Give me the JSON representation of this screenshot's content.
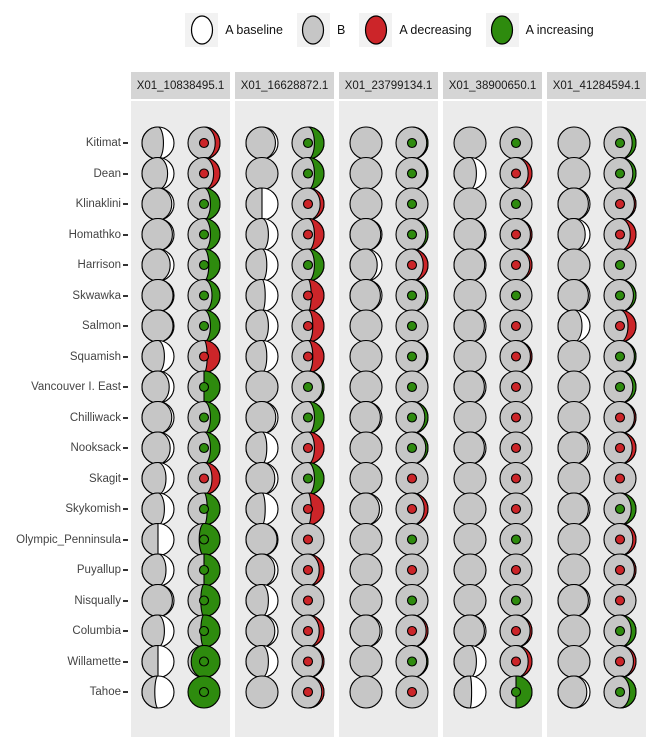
{
  "colors": {
    "baseline_white": "#FFFFFF",
    "b_gray": "#C6C6C6",
    "decreasing_red": "#CC2529",
    "increasing_green": "#2E8B0E",
    "panel_bg": "#EBEBEB",
    "strip_bg": "#D5D5D5",
    "outline": "#000000",
    "row_label": "#444444",
    "tick": "#333333"
  },
  "legend": {
    "items": [
      {
        "label": "A baseline",
        "fill": "#FFFFFF"
      },
      {
        "label": "B",
        "fill": "#C6C6C6"
      },
      {
        "label": "A decreasing",
        "fill": "#CC2529"
      },
      {
        "label": "A increasing",
        "fill": "#2E8B0E"
      }
    ]
  },
  "chart_data": {
    "type": "moon-chart",
    "description": "Faceted moon/phase chart. Each row (site) x facet (marker) shows two circles: left moon = gray fraction B vs white A-baseline; right moon = gray circle with colored crescent whose size is the magnitude of change in A (red = decreasing, green = increasing) and a center dot colored by direction.",
    "legend_position": "top",
    "facets": [
      "X01_10838495.1",
      "X01_16628872.1",
      "X01_23799134.1",
      "X01_38900650.1",
      "X01_41284594.1"
    ],
    "rows": [
      "Kitimat",
      "Dean",
      "Klinaklini",
      "Homathko",
      "Harrison",
      "Skwawka",
      "Salmon",
      "Squamish",
      "Vancouver I. East",
      "Chilliwack",
      "Nooksack",
      "Skagit",
      "Skykomish",
      "Olympic_Penninsula",
      "Puyallup",
      "Nisqually",
      "Columbia",
      "Willamette",
      "Tahoe"
    ],
    "cell_fields": [
      "b = gray fraction of left moon (0-1)",
      "dir = inc|dec",
      "mag = colored fraction of right moon (0-1)"
    ],
    "cells": [
      [
        {
          "b": 0.67,
          "dir": "dec",
          "mag": 0.15
        },
        {
          "b": 0.92,
          "dir": "inc",
          "mag": 0.3
        },
        {
          "b": 1,
          "dir": "inc",
          "mag": 0.04
        },
        {
          "b": 1,
          "dir": "inc",
          "mag": 0
        },
        {
          "b": 1,
          "dir": "inc",
          "mag": 0.12
        }
      ],
      [
        {
          "b": 0.8,
          "dir": "dec",
          "mag": 0.2
        },
        {
          "b": 1,
          "dir": "inc",
          "mag": 0.3
        },
        {
          "b": 1,
          "dir": "inc",
          "mag": 0.04
        },
        {
          "b": 0.7,
          "dir": "dec",
          "mag": 0.12
        },
        {
          "b": 1,
          "dir": "inc",
          "mag": 0.1
        }
      ],
      [
        {
          "b": 0.93,
          "dir": "inc",
          "mag": 0.3
        },
        {
          "b": 0.5,
          "dir": "dec",
          "mag": 0.12
        },
        {
          "b": 1,
          "dir": "inc",
          "mag": 0
        },
        {
          "b": 1,
          "dir": "inc",
          "mag": 0
        },
        {
          "b": 0.95,
          "dir": "dec",
          "mag": 0.05
        }
      ],
      [
        {
          "b": 0.95,
          "dir": "inc",
          "mag": 0.3
        },
        {
          "b": 0.7,
          "dir": "dec",
          "mag": 0.3
        },
        {
          "b": 0.96,
          "dir": "inc",
          "mag": 0.07
        },
        {
          "b": 0.96,
          "dir": "dec",
          "mag": 0.05
        },
        {
          "b": 0.85,
          "dir": "dec",
          "mag": 0.18
        }
      ],
      [
        {
          "b": 0.88,
          "dir": "inc",
          "mag": 0.35
        },
        {
          "b": 0.65,
          "dir": "inc",
          "mag": 0.3
        },
        {
          "b": 0.85,
          "dir": "dec",
          "mag": 0.15
        },
        {
          "b": 0.96,
          "dir": "dec",
          "mag": 0.07
        },
        {
          "b": 1,
          "dir": "inc",
          "mag": 0
        }
      ],
      [
        {
          "b": 0.97,
          "dir": "inc",
          "mag": 0.25
        },
        {
          "b": 0.6,
          "dir": "dec",
          "mag": 0.4
        },
        {
          "b": 0.95,
          "dir": "inc",
          "mag": 0.07
        },
        {
          "b": 1,
          "dir": "inc",
          "mag": 0
        },
        {
          "b": 0.95,
          "dir": "inc",
          "mag": 0.08
        }
      ],
      [
        {
          "b": 0.97,
          "dir": "inc",
          "mag": 0.3
        },
        {
          "b": 0.7,
          "dir": "dec",
          "mag": 0.35
        },
        {
          "b": 1,
          "dir": "inc",
          "mag": 0
        },
        {
          "b": 0.95,
          "dir": "dec",
          "mag": 0
        },
        {
          "b": 0.75,
          "dir": "dec",
          "mag": 0.25
        }
      ],
      [
        {
          "b": 0.7,
          "dir": "dec",
          "mag": 0.4
        },
        {
          "b": 0.65,
          "dir": "dec",
          "mag": 0.35
        },
        {
          "b": 1,
          "dir": "inc",
          "mag": 0.04
        },
        {
          "b": 1,
          "dir": "dec",
          "mag": 0.05
        },
        {
          "b": 1,
          "dir": "inc",
          "mag": 0.05
        }
      ],
      [
        {
          "b": 0.85,
          "dir": "inc",
          "mag": 0.5
        },
        {
          "b": 1,
          "dir": "inc",
          "mag": 0.05
        },
        {
          "b": 1,
          "dir": "inc",
          "mag": 0
        },
        {
          "b": 0.95,
          "dir": "dec",
          "mag": 0
        },
        {
          "b": 1,
          "dir": "inc",
          "mag": 0.1
        }
      ],
      [
        {
          "b": 0.93,
          "dir": "inc",
          "mag": 0.3
        },
        {
          "b": 0.93,
          "dir": "inc",
          "mag": 0.3
        },
        {
          "b": 0.95,
          "dir": "inc",
          "mag": 0.1
        },
        {
          "b": 1,
          "dir": "dec",
          "mag": 0
        },
        {
          "b": 1,
          "dir": "dec",
          "mag": 0.05
        }
      ],
      [
        {
          "b": 0.88,
          "dir": "inc",
          "mag": 0.3
        },
        {
          "b": 0.65,
          "dir": "dec",
          "mag": 0.3
        },
        {
          "b": 1,
          "dir": "inc",
          "mag": 0.07
        },
        {
          "b": 0.95,
          "dir": "dec",
          "mag": 0
        },
        {
          "b": 0.94,
          "dir": "dec",
          "mag": 0.12
        }
      ],
      [
        {
          "b": 0.75,
          "dir": "dec",
          "mag": 0.25
        },
        {
          "b": 0.9,
          "dir": "inc",
          "mag": 0.3
        },
        {
          "b": 1,
          "dir": "dec",
          "mag": 0
        },
        {
          "b": 1,
          "dir": "dec",
          "mag": 0
        },
        {
          "b": 1,
          "dir": "dec",
          "mag": 0
        }
      ],
      [
        {
          "b": 0.7,
          "dir": "inc",
          "mag": 0.4
        },
        {
          "b": 0.6,
          "dir": "dec",
          "mag": 0.4
        },
        {
          "b": 0.92,
          "dir": "dec",
          "mag": 0.12
        },
        {
          "b": 1,
          "dir": "dec",
          "mag": 0
        },
        {
          "b": 0.95,
          "dir": "inc",
          "mag": 0.15
        }
      ],
      [
        {
          "b": 0.5,
          "dir": "inc",
          "mag": 0.65
        },
        {
          "b": 0.97,
          "dir": "dec",
          "mag": 0
        },
        {
          "b": 1,
          "dir": "inc",
          "mag": 0
        },
        {
          "b": 1,
          "dir": "inc",
          "mag": 0
        },
        {
          "b": 1,
          "dir": "dec",
          "mag": 0.1
        }
      ],
      [
        {
          "b": 0.75,
          "dir": "inc",
          "mag": 0.5
        },
        {
          "b": 0.9,
          "dir": "dec",
          "mag": 0.15
        },
        {
          "b": 1,
          "dir": "dec",
          "mag": 0
        },
        {
          "b": 1,
          "dir": "dec",
          "mag": 0
        },
        {
          "b": 1,
          "dir": "dec",
          "mag": 0.05
        }
      ],
      [
        {
          "b": 0.95,
          "dir": "inc",
          "mag": 0.6
        },
        {
          "b": 0.7,
          "dir": "dec",
          "mag": 0
        },
        {
          "b": 1,
          "dir": "inc",
          "mag": 0
        },
        {
          "b": 1,
          "dir": "inc",
          "mag": 0
        },
        {
          "b": 0.95,
          "dir": "dec",
          "mag": 0
        }
      ],
      [
        {
          "b": 0.7,
          "dir": "inc",
          "mag": 0.6
        },
        {
          "b": 0.9,
          "dir": "dec",
          "mag": 0.15
        },
        {
          "b": 0.94,
          "dir": "dec",
          "mag": 0.06
        },
        {
          "b": 0.95,
          "dir": "dec",
          "mag": 0.06
        },
        {
          "b": 1,
          "dir": "inc",
          "mag": 0.15
        }
      ],
      [
        {
          "b": 0.5,
          "dir": "inc",
          "mag": 0.9
        },
        {
          "b": 0.7,
          "dir": "dec",
          "mag": 0.05
        },
        {
          "b": 1,
          "dir": "inc",
          "mag": 0.04
        },
        {
          "b": 0.7,
          "dir": "dec",
          "mag": 0.12
        },
        {
          "b": 1,
          "dir": "dec",
          "mag": 0.08
        }
      ],
      [
        {
          "b": 0.4,
          "dir": "inc",
          "mag": 1
        },
        {
          "b": 1,
          "dir": "dec",
          "mag": 0.07
        },
        {
          "b": 1,
          "dir": "dec",
          "mag": 0
        },
        {
          "b": 0.55,
          "dir": "inc",
          "mag": 0.5
        },
        {
          "b": 0.9,
          "dir": "inc",
          "mag": 0.2
        }
      ]
    ]
  }
}
